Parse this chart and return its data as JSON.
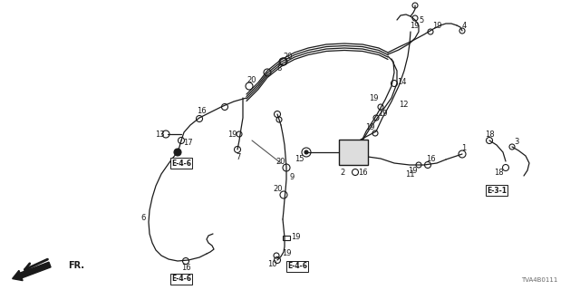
{
  "bg_color": "#ffffff",
  "line_color": "#1a1a1a",
  "watermark": "TVA4B0111",
  "figsize": [
    6.4,
    3.2
  ],
  "dpi": 100
}
